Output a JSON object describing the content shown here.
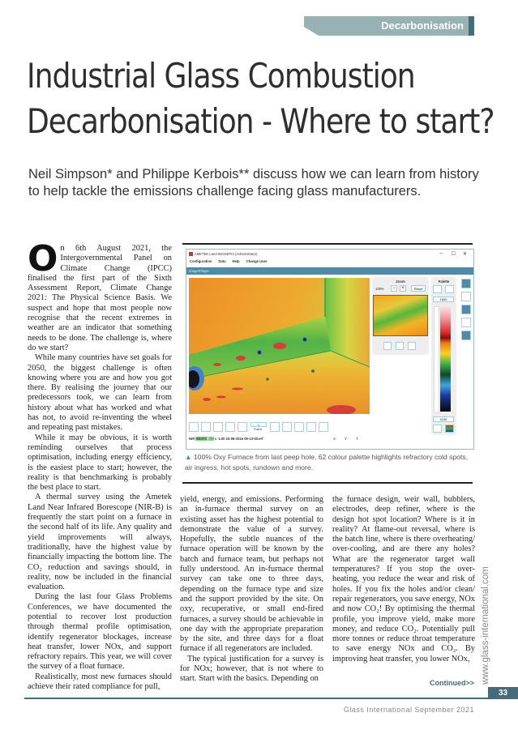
{
  "section": {
    "label": "Decarbonisation"
  },
  "article": {
    "title_lines": [
      "Industrial Glass Combustion",
      "Decarbonisation - Where to start?"
    ],
    "subtitle": "Neil Simpson* and Philippe Kerbois** discuss how we can learn from history to help tackle the emissions challenge facing glass manufacturers.",
    "drop_cap": "O",
    "col1": [
      "n 6th August 2021, the Intergovernmental Panel on Climate Change (IPCC) finalised the first part of the Sixth Assessment Report, Climate Change 2021: The Physical Science Basis. We suspect and hope that most people now recognise that the recent extremes in weather are an indicator that something needs to be done. The challenge is, where do we start?",
      "While many countries have set goals for 2050, the biggest challenge is often knowing where you are and how you got there. By realising the journey that our predecessors took, we can learn from history about what has worked and what has not, to avoid re-inventing the wheel and repeating past mistakes.",
      "While it may be obvious, it is worth reminding ourselves that process optimisation, including energy efficiency, is the easiest place to start; however, the reality is that benchmarking is probably the best place to start.",
      "A thermal survey using the Ametek Land Near Infrared Borescope (NIR-B) is frequently the start point on a furnace in the second half of its life. Any quality and yield improvements will always, traditionally, have the highest value by financially impacting the bottom line. The CO₂ reduction and savings should, in reality, now be included in the financial evaluation.",
      "During the last four Glass Problems Conferences, we have documented the potential to recover lost production through thermal profile optimisation, identify regenerator blockages, increase heat transfer, lower NOx, and support refractory repairs. This year, we will cover the survey of a float furnace.",
      "Realistically, most new furnaces should achieve their rated compliance for pull,"
    ],
    "col2": [
      "yield, energy, and emissions. Performing an in-furnace thermal survey on an existing asset has the highest potential to demonstrate the value of a survey. Hopefully, the subtle nuances of the furnace operation will be known by the batch and furnace team, but perhaps not fully understood. An in-furnace thermal survey can take one to three days, depending on the furnace type and size and the support provided by the site. On oxy, recuperative, or small end-fired furnaces, a survey should be achievable in one day with the appropriate preparation by the site, and three days for a float furnace if all regenerators are included.",
      "The typical justification for a survey is for NOx; however, that is not where to start. Start with the basics. Depending on"
    ],
    "col3": [
      "the furnace design, weir wall, bubblers, electrodes, deep refiner, where is the design hot spot location? Where is it in reality? At flame-out reversal, where is the batch line, where is there overheating/ over-cooling, and are there any holes? What are the regenerator target wall temperatures? If you stop the over-heating, you reduce the wear and risk of holes. If you fix the holes and/or clean/ repair regenerators, you save energy, NOx and now CO₂! By optimising the thermal profile, you improve yield, make more money, and reduce CO₂. Potentially pull more tonnes or reduce throat temperature to save energy NOx and CO₂. By improving heat transfer, you lower NOx,"
    ],
    "continued": "Continued>>"
  },
  "figure": {
    "window_title": "AMETEK Land IMAGEPro (Administrator)",
    "window_controls": [
      "–",
      "☐",
      "✕"
    ],
    "menu": [
      "Configuration",
      "Data",
      "Help",
      "Change User"
    ],
    "panel_title": "ImagerPlayer",
    "zoom": {
      "label": "Zoom",
      "level": "100%",
      "minus": "−",
      "plus": "+",
      "reset": "Reset"
    },
    "palette": {
      "label": "Palette",
      "max": "1650",
      "min": "1100"
    },
    "frame": {
      "value": "1",
      "label": "Frame"
    },
    "status": {
      "sensor": "NIR",
      "temp": "53.0°C",
      "dash": "---",
      "info": "ε: 1.00  24-08-2016 09-13-50.erf",
      "x": "X:",
      "y": "Y:",
      "t": "T:"
    },
    "caption": "100% Oxy Furnace from last peep hole. 62 colour palette highlights refractory cold spots, air ingress, hot spots, rundown and more.",
    "caption_icon": "triangle-up-icon"
  },
  "footer": {
    "page_number": "33",
    "publication": "Glass International September 2021",
    "website": "www.glass-international.com"
  },
  "colors": {
    "accent": "#466b7b",
    "tab": "#97b1b5",
    "ui_blue": "#4f8aa6"
  }
}
